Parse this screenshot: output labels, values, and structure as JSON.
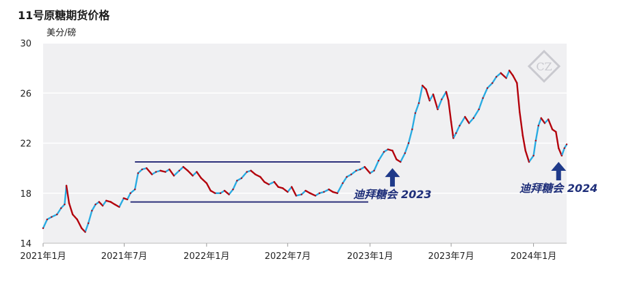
{
  "colors": {
    "up": "#29abe2",
    "down": "#b3000b",
    "band": "#2b2f7a",
    "arrow": "#1f3a8a",
    "plot_bg": "#f0f0f2",
    "grid": "#ffffff",
    "watermark": "#c9c9cf"
  },
  "watermark": {
    "text": "CZ"
  },
  "chart_data": {
    "type": "line",
    "title": "11号原糖期货价格",
    "ylabel": "美分/磅",
    "xlabel": "",
    "ylim": [
      14,
      30
    ],
    "yticks": [
      14,
      18,
      22,
      26,
      30
    ],
    "xlim": [
      "2021-01-01",
      "2024-03-15"
    ],
    "xticks": [
      {
        "date": "2021-01-01",
        "label": "2021年1月"
      },
      {
        "date": "2021-07-01",
        "label": "2021年7月"
      },
      {
        "date": "2022-01-01",
        "label": "2022年1月"
      },
      {
        "date": "2022-07-01",
        "label": "2022年7月"
      },
      {
        "date": "2023-01-01",
        "label": "2023年1月"
      },
      {
        "date": "2023-07-01",
        "label": "2023年7月"
      },
      {
        "date": "2024-01-01",
        "label": "2024年1月"
      }
    ],
    "grid": true,
    "series": [
      {
        "points": [
          [
            "2021-01-01",
            15.2
          ],
          [
            "2021-01-10",
            15.9
          ],
          [
            "2021-01-20",
            16.1
          ],
          [
            "2021-02-01",
            16.3
          ],
          [
            "2021-02-10",
            16.8
          ],
          [
            "2021-02-18",
            17.1
          ],
          [
            "2021-02-22",
            18.6
          ],
          [
            "2021-02-28",
            17.2
          ],
          [
            "2021-03-08",
            16.3
          ],
          [
            "2021-03-18",
            15.9
          ],
          [
            "2021-03-28",
            15.2
          ],
          [
            "2021-04-05",
            14.9
          ],
          [
            "2021-04-12",
            15.6
          ],
          [
            "2021-04-20",
            16.6
          ],
          [
            "2021-04-28",
            17.1
          ],
          [
            "2021-05-06",
            17.3
          ],
          [
            "2021-05-14",
            17.0
          ],
          [
            "2021-05-22",
            17.4
          ],
          [
            "2021-06-01",
            17.3
          ],
          [
            "2021-06-10",
            17.1
          ],
          [
            "2021-06-20",
            16.9
          ],
          [
            "2021-06-30",
            17.6
          ],
          [
            "2021-07-08",
            17.5
          ],
          [
            "2021-07-15",
            18.0
          ],
          [
            "2021-07-25",
            18.3
          ],
          [
            "2021-08-01",
            19.6
          ],
          [
            "2021-08-10",
            19.9
          ],
          [
            "2021-08-20",
            20.0
          ],
          [
            "2021-09-01",
            19.5
          ],
          [
            "2021-09-10",
            19.7
          ],
          [
            "2021-09-20",
            19.8
          ],
          [
            "2021-10-01",
            19.7
          ],
          [
            "2021-10-10",
            19.9
          ],
          [
            "2021-10-20",
            19.4
          ],
          [
            "2021-11-01",
            19.8
          ],
          [
            "2021-11-10",
            20.1
          ],
          [
            "2021-11-20",
            19.8
          ],
          [
            "2021-12-01",
            19.4
          ],
          [
            "2021-12-10",
            19.7
          ],
          [
            "2021-12-20",
            19.2
          ],
          [
            "2022-01-01",
            18.8
          ],
          [
            "2022-01-10",
            18.2
          ],
          [
            "2022-01-20",
            18.0
          ],
          [
            "2022-02-01",
            18.0
          ],
          [
            "2022-02-10",
            18.2
          ],
          [
            "2022-02-20",
            17.9
          ],
          [
            "2022-03-01",
            18.3
          ],
          [
            "2022-03-10",
            19.0
          ],
          [
            "2022-03-20",
            19.2
          ],
          [
            "2022-04-01",
            19.7
          ],
          [
            "2022-04-10",
            19.8
          ],
          [
            "2022-04-20",
            19.5
          ],
          [
            "2022-05-01",
            19.3
          ],
          [
            "2022-05-10",
            18.9
          ],
          [
            "2022-05-20",
            18.7
          ],
          [
            "2022-06-01",
            18.9
          ],
          [
            "2022-06-10",
            18.5
          ],
          [
            "2022-06-20",
            18.4
          ],
          [
            "2022-07-01",
            18.1
          ],
          [
            "2022-07-10",
            18.5
          ],
          [
            "2022-07-20",
            17.8
          ],
          [
            "2022-08-01",
            17.9
          ],
          [
            "2022-08-10",
            18.2
          ],
          [
            "2022-08-20",
            18.0
          ],
          [
            "2022-09-01",
            17.8
          ],
          [
            "2022-09-10",
            18.0
          ],
          [
            "2022-09-20",
            18.1
          ],
          [
            "2022-10-01",
            18.3
          ],
          [
            "2022-10-10",
            18.1
          ],
          [
            "2022-10-20",
            18.0
          ],
          [
            "2022-11-01",
            18.8
          ],
          [
            "2022-11-10",
            19.3
          ],
          [
            "2022-11-20",
            19.5
          ],
          [
            "2022-12-01",
            19.8
          ],
          [
            "2022-12-10",
            19.9
          ],
          [
            "2022-12-20",
            20.1
          ],
          [
            "2023-01-01",
            19.6
          ],
          [
            "2023-01-10",
            19.8
          ],
          [
            "2023-01-20",
            20.6
          ],
          [
            "2023-02-01",
            21.3
          ],
          [
            "2023-02-10",
            21.5
          ],
          [
            "2023-02-20",
            21.4
          ],
          [
            "2023-03-01",
            20.7
          ],
          [
            "2023-03-10",
            20.5
          ],
          [
            "2023-03-20",
            21.2
          ],
          [
            "2023-03-28",
            22.0
          ],
          [
            "2023-04-05",
            23.1
          ],
          [
            "2023-04-12",
            24.4
          ],
          [
            "2023-04-20",
            25.2
          ],
          [
            "2023-04-28",
            26.6
          ],
          [
            "2023-05-06",
            26.3
          ],
          [
            "2023-05-14",
            25.4
          ],
          [
            "2023-05-22",
            25.9
          ],
          [
            "2023-06-01",
            24.7
          ],
          [
            "2023-06-10",
            25.5
          ],
          [
            "2023-06-20",
            26.1
          ],
          [
            "2023-06-25",
            25.4
          ],
          [
            "2023-07-01",
            23.7
          ],
          [
            "2023-07-06",
            22.4
          ],
          [
            "2023-07-12",
            22.8
          ],
          [
            "2023-07-20",
            23.4
          ],
          [
            "2023-08-01",
            24.1
          ],
          [
            "2023-08-10",
            23.6
          ],
          [
            "2023-08-20",
            24.0
          ],
          [
            "2023-09-01",
            24.7
          ],
          [
            "2023-09-10",
            25.6
          ],
          [
            "2023-09-20",
            26.4
          ],
          [
            "2023-10-01",
            26.8
          ],
          [
            "2023-10-10",
            27.3
          ],
          [
            "2023-10-20",
            27.6
          ],
          [
            "2023-11-01",
            27.2
          ],
          [
            "2023-11-08",
            27.8
          ],
          [
            "2023-11-16",
            27.4
          ],
          [
            "2023-11-25",
            26.8
          ],
          [
            "2023-12-01",
            24.5
          ],
          [
            "2023-12-08",
            22.6
          ],
          [
            "2023-12-14",
            21.4
          ],
          [
            "2023-12-22",
            20.5
          ],
          [
            "2024-01-01",
            21.0
          ],
          [
            "2024-01-06",
            22.2
          ],
          [
            "2024-01-12",
            23.4
          ],
          [
            "2024-01-18",
            24.0
          ],
          [
            "2024-01-26",
            23.6
          ],
          [
            "2024-02-03",
            23.9
          ],
          [
            "2024-02-12",
            23.1
          ],
          [
            "2024-02-20",
            22.9
          ],
          [
            "2024-02-26",
            21.6
          ],
          [
            "2024-03-04",
            21.0
          ],
          [
            "2024-03-10",
            21.6
          ],
          [
            "2024-03-15",
            21.9
          ]
        ]
      }
    ],
    "band_lines": [
      {
        "from": [
          "2021-07-25",
          20.5
        ],
        "to": [
          "2022-12-10",
          20.5
        ]
      },
      {
        "from": [
          "2021-07-15",
          17.3
        ],
        "to": [
          "2022-12-28",
          17.3
        ]
      }
    ],
    "annotations": [
      {
        "text": "迪拜糖会 2023",
        "date": "2023-02-20",
        "arrow_to": 20.0
      },
      {
        "text": "迪拜糖会 2024",
        "date": "2024-02-26",
        "arrow_to": 20.5
      }
    ]
  }
}
